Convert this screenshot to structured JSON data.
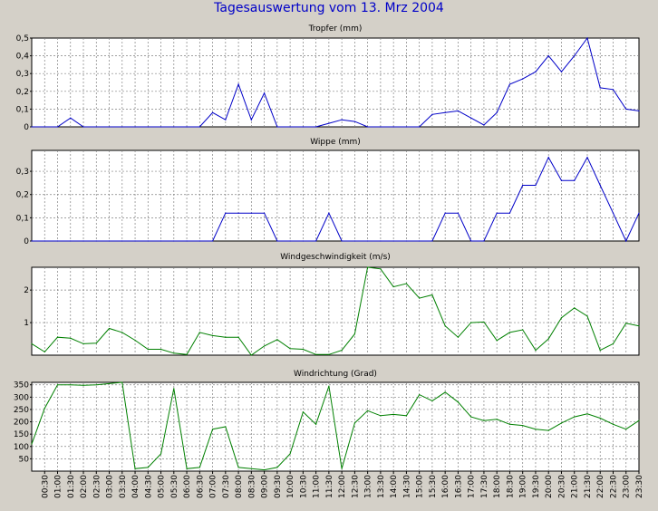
{
  "page_title": "Tagesauswertung vom 13. Mrz 2004",
  "x_ticks": [
    "00:30",
    "01:00",
    "01:30",
    "02:00",
    "02:30",
    "03:00",
    "03:30",
    "04:00",
    "04:30",
    "05:00",
    "05:30",
    "06:00",
    "06:30",
    "07:00",
    "07:30",
    "08:00",
    "08:30",
    "09:00",
    "09:30",
    "10:00",
    "10:30",
    "11:00",
    "11:30",
    "12:00",
    "12:30",
    "13:00",
    "13:30",
    "14:00",
    "14:30",
    "15:00",
    "15:30",
    "16:00",
    "16:30",
    "17:00",
    "17:30",
    "18:00",
    "18:30",
    "19:00",
    "19:30",
    "20:00",
    "20:30",
    "21:00",
    "21:30",
    "22:00",
    "22:30",
    "23:00",
    "23:30"
  ],
  "chart_data": [
    {
      "type": "line",
      "title": "Tropfer (mm)",
      "color": "#0000c8",
      "ylim": [
        0,
        0.5
      ],
      "yticks": [
        0,
        0.1,
        0.2,
        0.3,
        0.4,
        0.5
      ],
      "ytick_labels": [
        "0",
        "0,1",
        "0,2",
        "0,3",
        "0,4",
        "0,5"
      ],
      "grid": true,
      "x": [
        0,
        1,
        2,
        3,
        4,
        5,
        6,
        7,
        8,
        9,
        10,
        11,
        12,
        13,
        14,
        15,
        16,
        17,
        18,
        19,
        20,
        21,
        22,
        23,
        24,
        25,
        26,
        27,
        28,
        29,
        30,
        31,
        32,
        33,
        34,
        35,
        36,
        37,
        38,
        39,
        40,
        41,
        42,
        43,
        44,
        45,
        46,
        47
      ],
      "values": [
        0,
        0,
        0,
        0.05,
        0,
        0,
        0,
        0,
        0,
        0,
        0,
        0,
        0,
        0,
        0.08,
        0.04,
        0.24,
        0.04,
        0.19,
        0,
        0,
        0,
        0,
        0.02,
        0.04,
        0.03,
        0,
        0,
        0,
        0,
        0,
        0.07,
        0.08,
        0.09,
        0.05,
        0.01,
        0.08,
        0.24,
        0.27,
        0.31,
        0.4,
        0.31,
        0.4,
        0.5,
        0.22,
        0.21,
        0.1,
        0.09
      ]
    },
    {
      "type": "line",
      "title": "Wippe (mm)",
      "color": "#0000c8",
      "ylim": [
        0,
        0.39
      ],
      "yticks": [
        0,
        0.1,
        0.2,
        0.3
      ],
      "ytick_labels": [
        "0",
        "0,1",
        "0,2",
        "0,3"
      ],
      "grid": true,
      "x": [
        0,
        1,
        2,
        3,
        4,
        5,
        6,
        7,
        8,
        9,
        10,
        11,
        12,
        13,
        14,
        15,
        16,
        17,
        18,
        19,
        20,
        21,
        22,
        23,
        24,
        25,
        26,
        27,
        28,
        29,
        30,
        31,
        32,
        33,
        34,
        35,
        36,
        37,
        38,
        39,
        40,
        41,
        42,
        43,
        44,
        45,
        46,
        47
      ],
      "values": [
        0,
        0,
        0,
        0,
        0,
        0,
        0,
        0,
        0,
        0,
        0,
        0,
        0,
        0,
        0,
        0.12,
        0.12,
        0.12,
        0.12,
        0,
        0,
        0,
        0,
        0.12,
        0,
        0,
        0,
        0,
        0,
        0,
        0,
        0,
        0.12,
        0.12,
        0,
        0,
        0.12,
        0.12,
        0.24,
        0.24,
        0.36,
        0.26,
        0.26,
        0.36,
        0.24,
        0.12,
        0,
        0.12
      ]
    },
    {
      "type": "line",
      "title": "Windgeschwindigkeit (m/s)",
      "color": "#008000",
      "ylim": [
        0,
        2.7
      ],
      "yticks": [
        1,
        2
      ],
      "ytick_labels": [
        "1",
        "2"
      ],
      "grid": true,
      "x": [
        0,
        1,
        2,
        3,
        4,
        5,
        6,
        7,
        8,
        9,
        10,
        11,
        12,
        13,
        14,
        15,
        16,
        17,
        18,
        19,
        20,
        21,
        22,
        23,
        24,
        25,
        26,
        27,
        28,
        29,
        30,
        31,
        32,
        33,
        34,
        35,
        36,
        37,
        38,
        39,
        40,
        41,
        42,
        43,
        44,
        45,
        46,
        47
      ],
      "values": [
        0.35,
        0.1,
        0.55,
        0.52,
        0.35,
        0.37,
        0.82,
        0.7,
        0.46,
        0.18,
        0.18,
        0.06,
        0.02,
        0.7,
        0.6,
        0.55,
        0.55,
        0,
        0.28,
        0.48,
        0.2,
        0.18,
        0.02,
        0.02,
        0.15,
        0.65,
        2.7,
        2.65,
        2.1,
        2.2,
        1.75,
        1.85,
        0.9,
        0.55,
        1.0,
        1.02,
        0.45,
        0.7,
        0.78,
        0.15,
        0.5,
        1.15,
        1.45,
        1.2,
        0.15,
        0.35,
        0.98,
        0.9
      ]
    },
    {
      "type": "line",
      "title": "Windrichtung (Grad)",
      "color": "#008000",
      "ylim": [
        0,
        360
      ],
      "yticks": [
        50,
        100,
        150,
        200,
        250,
        300,
        350
      ],
      "ytick_labels": [
        "50",
        "100",
        "150",
        "200",
        "250",
        "300",
        "350"
      ],
      "grid": true,
      "x": [
        0,
        1,
        2,
        3,
        4,
        5,
        6,
        7,
        8,
        9,
        10,
        11,
        12,
        13,
        14,
        15,
        16,
        17,
        18,
        19,
        20,
        21,
        22,
        23,
        24,
        25,
        26,
        27,
        28,
        29,
        30,
        31,
        32,
        33,
        34,
        35,
        36,
        37,
        38,
        39,
        40,
        41,
        42,
        43,
        44,
        45,
        46,
        47
      ],
      "values": [
        110,
        255,
        350,
        350,
        348,
        350,
        355,
        365,
        10,
        15,
        70,
        335,
        10,
        15,
        170,
        180,
        15,
        10,
        5,
        15,
        70,
        240,
        190,
        345,
        10,
        195,
        245,
        225,
        230,
        225,
        310,
        285,
        320,
        280,
        220,
        205,
        210,
        190,
        185,
        170,
        165,
        195,
        220,
        232,
        215,
        190,
        170,
        205
      ]
    }
  ]
}
